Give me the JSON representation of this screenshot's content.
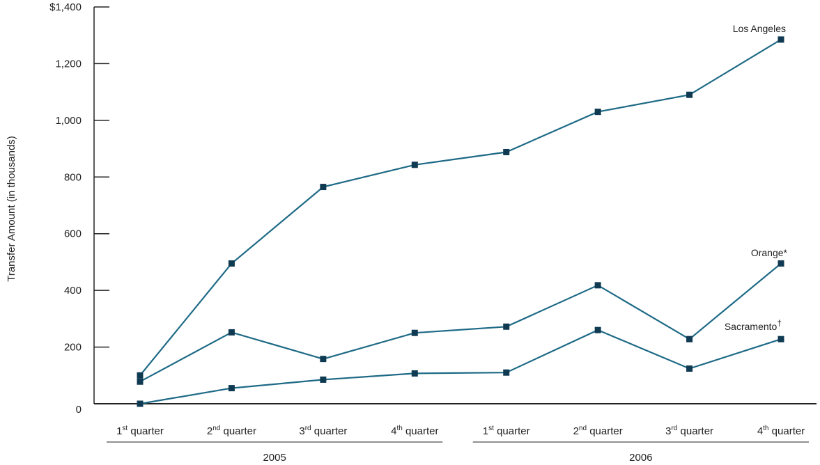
{
  "chart_data": {
    "type": "line",
    "title": "",
    "ylabel": "Transfer Amount (in thousands)",
    "xlabel": "",
    "ylim": [
      0,
      1400
    ],
    "y_ticks": [
      {
        "value": 0,
        "label": "0"
      },
      {
        "value": 200,
        "label": "200"
      },
      {
        "value": 400,
        "label": "400"
      },
      {
        "value": 600,
        "label": "600"
      },
      {
        "value": 800,
        "label": "800"
      },
      {
        "value": 1000,
        "label": "1,000"
      },
      {
        "value": 1200,
        "label": "1,200"
      },
      {
        "value": 1400,
        "label": "$1,400"
      }
    ],
    "categories": [
      {
        "num": "1",
        "sup": "st",
        "rest": " quarter"
      },
      {
        "num": "2",
        "sup": "nd",
        "rest": " quarter"
      },
      {
        "num": "3",
        "sup": "rd",
        "rest": " quarter"
      },
      {
        "num": "4",
        "sup": "th",
        "rest": " quarter"
      },
      {
        "num": "1",
        "sup": "st",
        "rest": " quarter"
      },
      {
        "num": "2",
        "sup": "nd",
        "rest": " quarter"
      },
      {
        "num": "3",
        "sup": "rd",
        "rest": " quarter"
      },
      {
        "num": "4",
        "sup": "th",
        "rest": " quarter"
      }
    ],
    "year_groups": [
      {
        "label": "2005",
        "start": 0,
        "end": 3
      },
      {
        "label": "2006",
        "start": 4,
        "end": 7
      }
    ],
    "series_color": "#1e6a86",
    "marker_color": "#103a52",
    "series": [
      {
        "name": "Los Angeles",
        "label_main": "Los Angeles",
        "label_sup": "",
        "values": [
          100,
          495,
          765,
          843,
          888,
          1030,
          1090,
          1285
        ]
      },
      {
        "name": "Orange*",
        "label_main": "Orange*",
        "label_sup": "",
        "values": [
          78,
          252,
          158,
          250,
          272,
          418,
          228,
          495
        ]
      },
      {
        "name": "Sacramento†",
        "label_main": "Sacramento",
        "label_sup": "†",
        "values": [
          0,
          55,
          85,
          107,
          110,
          260,
          124,
          228
        ]
      }
    ]
  }
}
